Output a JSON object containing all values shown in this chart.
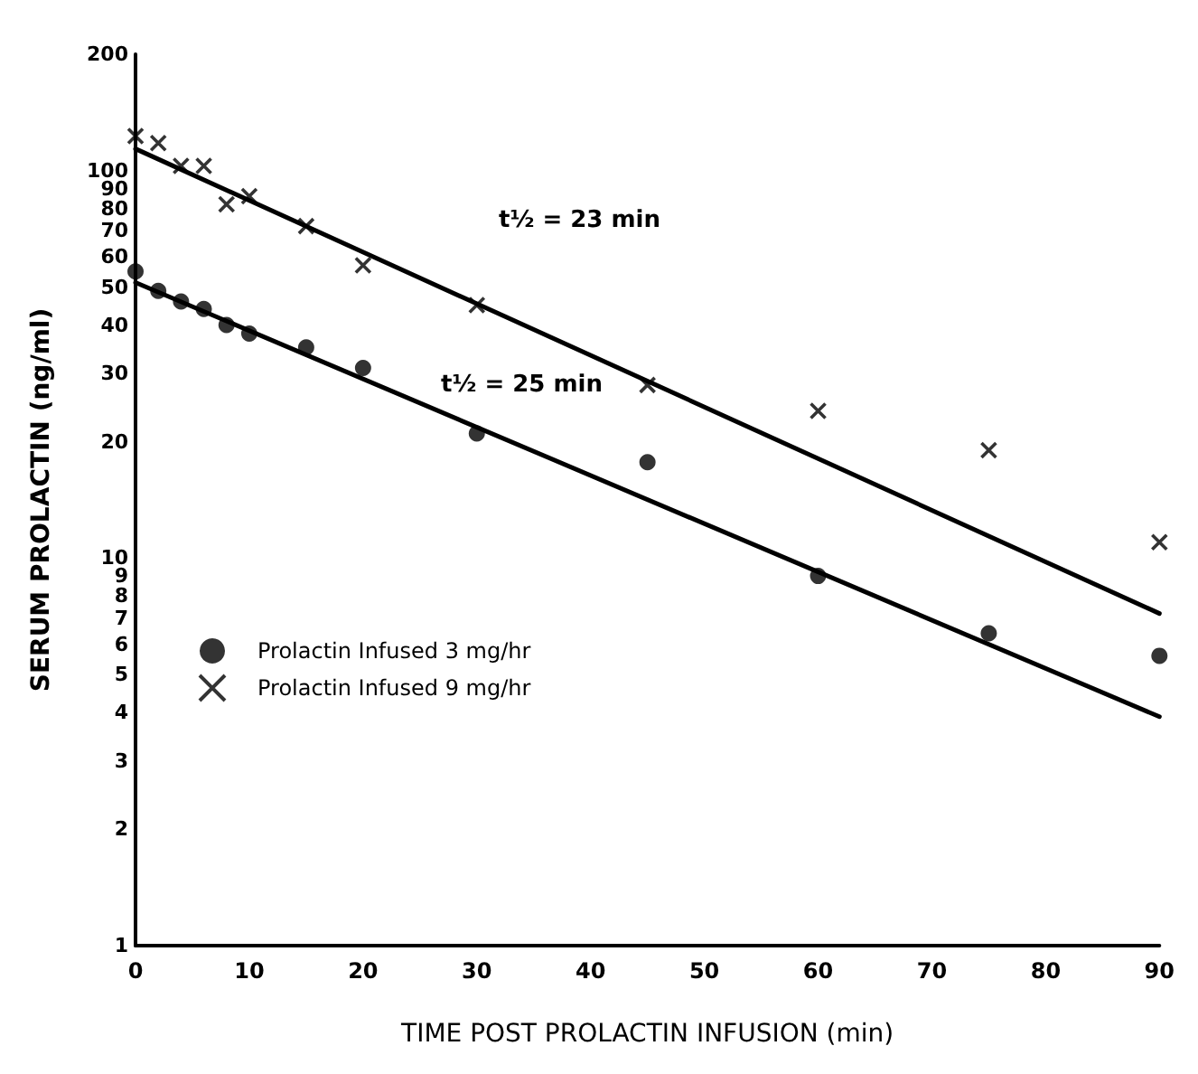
{
  "chart_data": {
    "type": "scatter",
    "xlabel": "TIME POST PROLACTIN INFUSION (min)",
    "ylabel": "SERUM PROLACTIN (ng/ml)",
    "xlim": [
      0,
      90
    ],
    "xticks": [
      0,
      10,
      20,
      30,
      40,
      50,
      60,
      70,
      80,
      90
    ],
    "ylim": [
      1,
      200
    ],
    "yticks": [
      1,
      2,
      3,
      4,
      5,
      6,
      7,
      8,
      9,
      10,
      20,
      30,
      40,
      50,
      60,
      70,
      80,
      90,
      100,
      200
    ],
    "log": "y",
    "grid": false,
    "legend": "left",
    "series": [
      {
        "name": "Prolactin Infused 3 mg/hr",
        "marker": "circle",
        "color": "#000000",
        "x": [
          0,
          2,
          4,
          6,
          8,
          10,
          15,
          20,
          30,
          45,
          60,
          75,
          90
        ],
        "values": [
          55,
          49,
          46,
          44,
          40,
          38,
          35,
          31,
          21,
          17.7,
          9,
          6.4,
          5.6
        ]
      },
      {
        "name": "Prolactin Infused 9 mg/hr",
        "marker": "cross",
        "color": "#000000",
        "x": [
          0,
          2,
          4,
          6,
          8,
          10,
          15,
          20,
          30,
          45,
          60,
          75,
          90
        ],
        "values": [
          123,
          118,
          103,
          103,
          82,
          86,
          72,
          57,
          45,
          28,
          24,
          19,
          11
        ]
      },
      {
        "type": "line",
        "marker": "none",
        "line_style": "solid",
        "color": "#000000",
        "x": [
          0,
          90
        ],
        "values": [
          51.5,
          3.9
        ]
      },
      {
        "type": "line",
        "marker": "none",
        "line_style": "solid",
        "color": "#000000",
        "x": [
          0,
          90
        ],
        "values": [
          114,
          7.2
        ]
      }
    ],
    "annotations": [
      "t½ = 23 min",
      "t½ = 25 min"
    ]
  }
}
